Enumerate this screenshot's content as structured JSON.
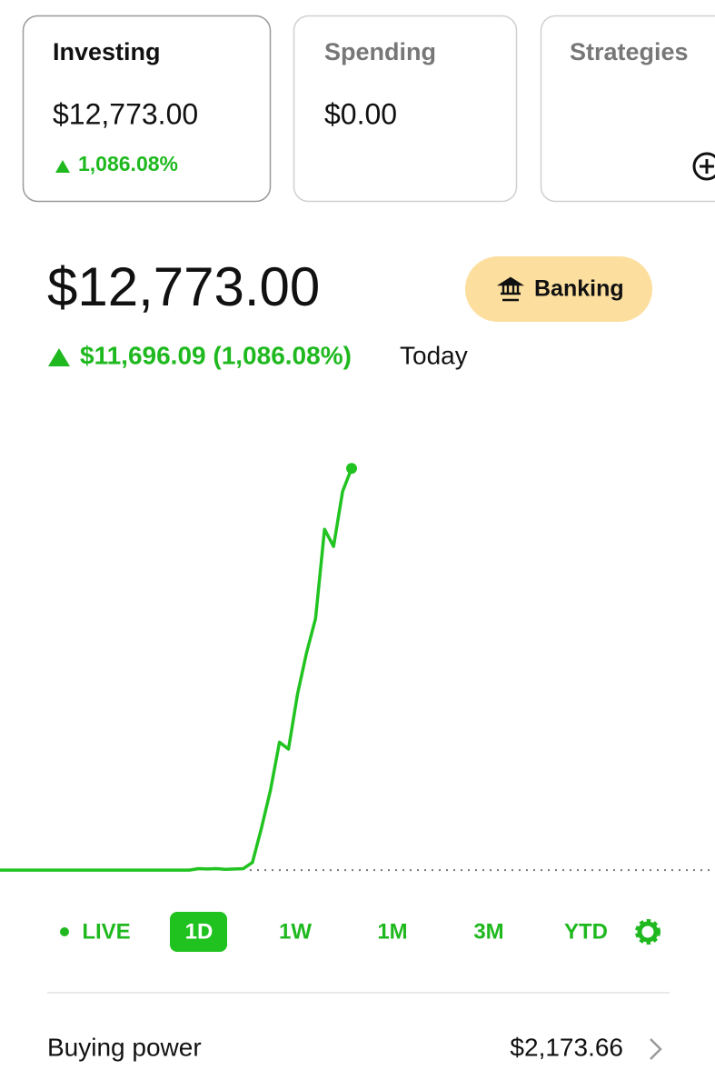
{
  "tabs": [
    {
      "title": "Investing",
      "value": "$12,773.00",
      "change": "1,086.08%"
    },
    {
      "title": "Spending",
      "value": "$0.00"
    },
    {
      "title": "Strategies"
    }
  ],
  "portfolio": {
    "value": "$12,773.00",
    "change": "$11,696.09 (1,086.08%)",
    "period": "Today"
  },
  "banking_button": "Banking",
  "chart_data": {
    "type": "line",
    "color": "#21c321",
    "values": [
      1076.91,
      1076.91,
      1076.91,
      1076.91,
      1076.91,
      1076.91,
      1076.91,
      1076.91,
      1076.91,
      1076.91,
      1076.91,
      1076.91,
      1076.91,
      1076.91,
      1076.91,
      1076.91,
      1076.91,
      1076.91,
      1076.91,
      1076.91,
      1076.91,
      1076.91,
      1120,
      1110,
      1120,
      1100,
      1110,
      1120,
      1300,
      2300,
      3400,
      4800,
      4600,
      6200,
      7400,
      8400,
      11000,
      10500,
      12100,
      12773
    ],
    "ylim": [
      1000,
      14500
    ],
    "baseline": 1076.91
  },
  "range_buttons": [
    "LIVE",
    "1D",
    "1W",
    "1M",
    "3M",
    "YTD"
  ],
  "selected_range": 1,
  "buying_power": {
    "label": "Buying power",
    "value": "$2,173.66"
  }
}
